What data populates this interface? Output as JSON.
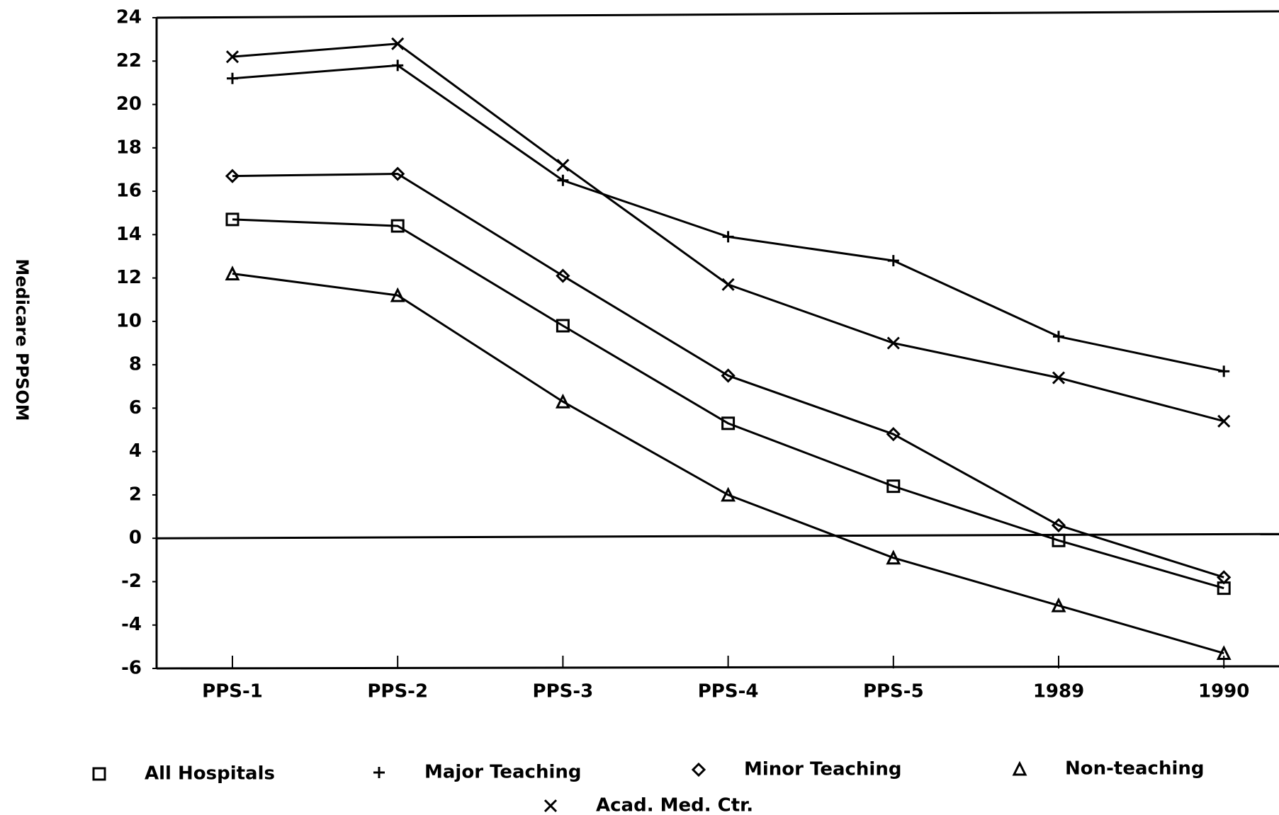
{
  "chart_data": {
    "type": "line",
    "y_label": "Medicare PPSOM",
    "categories": [
      "PPS-1",
      "PPS-2",
      "PPS-3",
      "PPS-4",
      "PPS-5",
      "1989",
      "1990"
    ],
    "series": [
      {
        "name": "All Hospitals",
        "color": "#000000",
        "marker": "square",
        "values": [
          14.7,
          14.4,
          9.8,
          5.3,
          2.4,
          -0.1,
          -2.3
        ]
      },
      {
        "name": "Major Teaching",
        "color": "#000000",
        "marker": "plus",
        "values": [
          21.2,
          21.8,
          16.5,
          13.9,
          12.8,
          9.3,
          7.7
        ]
      },
      {
        "name": "Minor Teaching",
        "color": "#000000",
        "marker": "diamond",
        "values": [
          16.7,
          16.8,
          12.1,
          7.5,
          4.8,
          0.6,
          -1.8
        ]
      },
      {
        "name": "Non-teaching",
        "color": "#000000",
        "marker": "triangle",
        "values": [
          12.2,
          11.2,
          6.3,
          2.0,
          -0.9,
          -3.1,
          -5.3
        ]
      },
      {
        "name": "Acad. Med. Ctr.",
        "color": "#000000",
        "marker": "cross",
        "values": [
          22.2,
          22.8,
          17.2,
          11.7,
          9.0,
          7.4,
          5.4
        ]
      }
    ],
    "ylim": [
      -6,
      24
    ],
    "yticks": [
      -6,
      -4,
      -2,
      0,
      2,
      4,
      6,
      8,
      10,
      12,
      14,
      16,
      18,
      20,
      22,
      24
    ],
    "zero_line": true
  }
}
